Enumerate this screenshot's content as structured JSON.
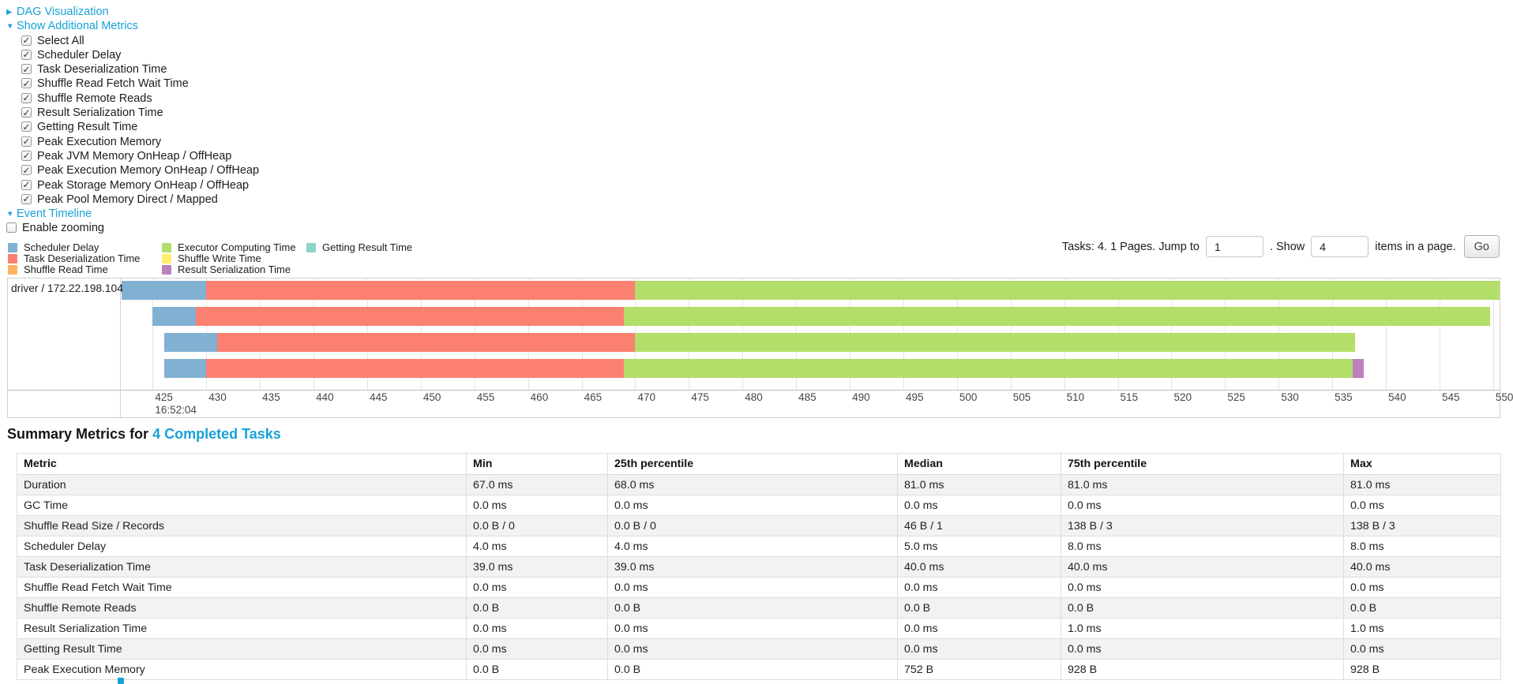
{
  "colors": {
    "link": "#17a2d8",
    "scheduler_delay": "#80B1D3",
    "task_deserialization": "#FB8072",
    "shuffle_read": "#FDB462",
    "executor_computing": "#B3DE69",
    "shuffle_write": "#FFED6F",
    "result_serialization": "#BC80BD",
    "getting_result": "#8DD3C7"
  },
  "controls": {
    "dag_label": "DAG Visualization",
    "metrics_label": "Show Additional Metrics",
    "metric_options": [
      "Select All",
      "Scheduler Delay",
      "Task Deserialization Time",
      "Shuffle Read Fetch Wait Time",
      "Shuffle Remote Reads",
      "Result Serialization Time",
      "Getting Result Time",
      "Peak Execution Memory",
      "Peak JVM Memory OnHeap / OffHeap",
      "Peak Execution Memory OnHeap / OffHeap",
      "Peak Storage Memory OnHeap / OffHeap",
      "Peak Pool Memory Direct / Mapped"
    ],
    "event_timeline_label": "Event Timeline",
    "enable_zooming_label": "Enable zooming",
    "enable_zooming_checked": false
  },
  "legend": {
    "columns": [
      [
        {
          "label": "Scheduler Delay",
          "type": "scheduler_delay"
        },
        {
          "label": "Task Deserialization Time",
          "type": "task_deserialization"
        },
        {
          "label": "Shuffle Read Time",
          "type": "shuffle_read"
        }
      ],
      [
        {
          "label": "Executor Computing Time",
          "type": "executor_computing"
        },
        {
          "label": "Shuffle Write Time",
          "type": "shuffle_write"
        },
        {
          "label": "Result Serialization Time",
          "type": "result_serialization"
        }
      ],
      [
        {
          "label": "Getting Result Time",
          "type": "getting_result"
        }
      ]
    ]
  },
  "pagination": {
    "tasks_text": "Tasks: 4. 1 Pages. Jump to",
    "jump_value": "1",
    "show_text": ". Show",
    "show_value": "4",
    "items_text": "items in a page.",
    "go_label": "Go"
  },
  "timeline": {
    "group_label": "driver / 172.22.198.104",
    "axis": {
      "min": 422.1,
      "max": 550.6,
      "tick_start": 425,
      "tick_end": 550,
      "tick_step": 5,
      "time_label": "16:52:04"
    },
    "tasks": [
      {
        "segments": [
          {
            "type": "scheduler_delay",
            "start": 422.1,
            "end": 430.0
          },
          {
            "type": "task_deserialization",
            "start": 430.0,
            "end": 470.0
          },
          {
            "type": "executor_computing",
            "start": 470.0,
            "end": 550.6
          }
        ]
      },
      {
        "segments": [
          {
            "type": "scheduler_delay",
            "start": 425.0,
            "end": 429.0
          },
          {
            "type": "task_deserialization",
            "start": 429.0,
            "end": 468.9
          },
          {
            "type": "executor_computing",
            "start": 468.9,
            "end": 549.7
          }
        ]
      },
      {
        "segments": [
          {
            "type": "scheduler_delay",
            "start": 426.1,
            "end": 431.0
          },
          {
            "type": "task_deserialization",
            "start": 431.0,
            "end": 470.0
          },
          {
            "type": "executor_computing",
            "start": 470.0,
            "end": 537.1
          }
        ]
      },
      {
        "segments": [
          {
            "type": "scheduler_delay",
            "start": 426.1,
            "end": 430.0
          },
          {
            "type": "task_deserialization",
            "start": 430.0,
            "end": 468.9
          },
          {
            "type": "executor_computing",
            "start": 468.9,
            "end": 536.9
          },
          {
            "type": "result_serialization",
            "start": 536.9,
            "end": 537.9
          }
        ]
      }
    ]
  },
  "summary": {
    "title_prefix": "Summary Metrics for",
    "title_link": "4 Completed Tasks",
    "columns": [
      "Metric",
      "Min",
      "25th percentile",
      "Median",
      "75th percentile",
      "Max"
    ],
    "rows": [
      [
        "Duration",
        "67.0 ms",
        "68.0 ms",
        "81.0 ms",
        "81.0 ms",
        "81.0 ms"
      ],
      [
        "GC Time",
        "0.0 ms",
        "0.0 ms",
        "0.0 ms",
        "0.0 ms",
        "0.0 ms"
      ],
      [
        "Shuffle Read Size / Records",
        "0.0 B / 0",
        "0.0 B / 0",
        "46 B / 1",
        "138 B / 3",
        "138 B / 3"
      ],
      [
        "Scheduler Delay",
        "4.0 ms",
        "4.0 ms",
        "5.0 ms",
        "8.0 ms",
        "8.0 ms"
      ],
      [
        "Task Deserialization Time",
        "39.0 ms",
        "39.0 ms",
        "40.0 ms",
        "40.0 ms",
        "40.0 ms"
      ],
      [
        "Shuffle Read Fetch Wait Time",
        "0.0 ms",
        "0.0 ms",
        "0.0 ms",
        "0.0 ms",
        "0.0 ms"
      ],
      [
        "Shuffle Remote Reads",
        "0.0 B",
        "0.0 B",
        "0.0 B",
        "0.0 B",
        "0.0 B"
      ],
      [
        "Result Serialization Time",
        "0.0 ms",
        "0.0 ms",
        "0.0 ms",
        "1.0 ms",
        "1.0 ms"
      ],
      [
        "Getting Result Time",
        "0.0 ms",
        "0.0 ms",
        "0.0 ms",
        "0.0 ms",
        "0.0 ms"
      ],
      [
        "Peak Execution Memory",
        "0.0 B",
        "0.0 B",
        "752 B",
        "928 B",
        "928 B"
      ]
    ]
  }
}
